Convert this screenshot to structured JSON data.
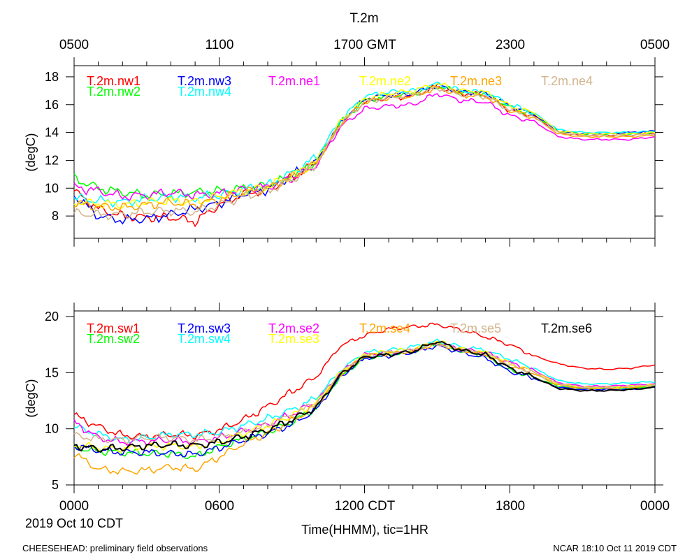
{
  "figure_title": "T.2m",
  "top_axis_labels": [
    "0500",
    "1100",
    "1700 GMT",
    "2300",
    "0500"
  ],
  "bottom_axis_labels": [
    "0000",
    "0600",
    "1200 CDT",
    "1800",
    "0000"
  ],
  "date_label": "2019 Oct 10 CDT",
  "x_axis_title": "Time(HHMM), tic=1HR",
  "footer_left": "CHEESEHEAD: preliminary field observations",
  "footer_right": "NCAR 18:10 Oct 11 2019 CDT",
  "chart_data": [
    {
      "type": "line",
      "panel": "north",
      "ylabel": "(degC)",
      "ylim": [
        6.4,
        18.8
      ],
      "yticks": [
        8,
        10,
        12,
        14,
        16,
        18
      ],
      "xlim": [
        0,
        24
      ],
      "x": [
        0,
        1,
        2,
        3,
        4,
        5,
        6,
        7,
        8,
        9,
        10,
        11,
        12,
        13,
        14,
        15,
        16,
        17,
        18,
        19,
        20,
        21,
        22,
        23,
        24
      ],
      "series": [
        {
          "name": "T.2m.nw1",
          "color": "#ff0000",
          "values": [
            9.8,
            8.5,
            8.0,
            7.9,
            7.9,
            7.6,
            8.8,
            9.6,
            9.9,
            10.8,
            11.8,
            14.5,
            16.2,
            16.5,
            16.6,
            17.3,
            16.8,
            16.7,
            15.6,
            15.2,
            14.0,
            13.8,
            13.8,
            13.8,
            14.0
          ]
        },
        {
          "name": "T.2m.nw2",
          "color": "#00ff00",
          "values": [
            10.7,
            10.0,
            9.7,
            9.5,
            9.6,
            9.7,
            9.8,
            10.0,
            10.2,
            10.8,
            11.9,
            14.7,
            16.3,
            16.6,
            16.8,
            17.3,
            16.9,
            16.8,
            15.8,
            15.3,
            14.1,
            13.9,
            13.9,
            13.9,
            14.0
          ]
        },
        {
          "name": "T.2m.nw3",
          "color": "#0000ff",
          "values": [
            9.5,
            8.0,
            7.7,
            7.8,
            8.1,
            8.5,
            8.9,
            9.6,
            9.9,
            10.9,
            11.9,
            14.7,
            16.4,
            16.7,
            16.8,
            17.4,
            16.9,
            16.8,
            15.9,
            15.3,
            14.1,
            13.9,
            13.9,
            14.0,
            14.1
          ]
        },
        {
          "name": "T.2m.nw4",
          "color": "#00ffff",
          "values": [
            9.3,
            9.1,
            9.0,
            9.2,
            9.4,
            9.3,
            9.5,
            9.9,
            10.2,
            11.1,
            12.2,
            14.9,
            16.6,
            16.9,
            17.0,
            17.5,
            17.0,
            16.9,
            16.0,
            15.4,
            14.2,
            14.0,
            14.0,
            14.0,
            14.1
          ]
        },
        {
          "name": "T.2m.ne1",
          "color": "#ff00ff",
          "values": [
            10.1,
            9.8,
            9.4,
            9.5,
            9.7,
            9.5,
            9.6,
            9.9,
            10.1,
            10.7,
            11.6,
            14.4,
            15.7,
            15.9,
            16.0,
            16.8,
            16.3,
            16.2,
            15.2,
            14.8,
            13.7,
            13.5,
            13.5,
            13.5,
            13.7
          ]
        },
        {
          "name": "T.2m.ne2",
          "color": "#ffff00",
          "values": [
            9.0,
            8.9,
            8.8,
            9.0,
            9.1,
            9.0,
            9.4,
            9.8,
            10.1,
            10.9,
            11.9,
            14.8,
            16.4,
            16.8,
            17.0,
            17.5,
            17.0,
            16.9,
            15.9,
            15.4,
            14.1,
            13.9,
            13.9,
            13.9,
            14.0
          ]
        },
        {
          "name": "T.2m.ne3",
          "color": "#ffa500",
          "values": [
            8.9,
            8.7,
            8.6,
            8.8,
            9.0,
            8.8,
            9.2,
            9.7,
            10.0,
            10.8,
            11.8,
            14.6,
            16.2,
            16.5,
            16.6,
            17.2,
            16.7,
            16.6,
            15.6,
            15.1,
            13.9,
            13.7,
            13.7,
            13.7,
            13.8
          ]
        },
        {
          "name": "T.2m.ne4",
          "color": "#d2b48c",
          "values": [
            8.2,
            8.1,
            8.1,
            8.3,
            8.4,
            8.3,
            8.8,
            9.4,
            9.8,
            10.6,
            11.7,
            14.6,
            16.2,
            16.5,
            16.7,
            17.2,
            16.7,
            16.6,
            15.6,
            15.1,
            14.0,
            13.8,
            13.8,
            13.8,
            13.9
          ]
        }
      ]
    },
    {
      "type": "line",
      "panel": "south",
      "ylabel": "(degC)",
      "ylim": [
        5,
        20.5
      ],
      "yticks": [
        5,
        10,
        15,
        20
      ],
      "xlim": [
        0,
        24
      ],
      "x": [
        0,
        1,
        2,
        3,
        4,
        5,
        6,
        7,
        8,
        9,
        10,
        11,
        12,
        13,
        14,
        15,
        16,
        17,
        18,
        19,
        20,
        21,
        22,
        23,
        24
      ],
      "series": [
        {
          "name": "T.2m.sw1",
          "color": "#ff0000",
          "values": [
            11.2,
            10.2,
            9.4,
            9.3,
            9.5,
            9.4,
            9.9,
            10.8,
            12.0,
            13.3,
            14.6,
            17.4,
            18.3,
            18.9,
            19.1,
            19.3,
            18.8,
            18.2,
            17.5,
            16.5,
            15.8,
            15.4,
            15.3,
            15.4,
            15.7
          ]
        },
        {
          "name": "T.2m.sw2",
          "color": "#00ff00",
          "values": [
            8.3,
            8.0,
            7.9,
            7.8,
            7.8,
            7.5,
            8.4,
            9.1,
            9.7,
            10.6,
            11.8,
            14.6,
            16.3,
            16.6,
            16.9,
            17.6,
            16.9,
            16.5,
            15.2,
            14.6,
            13.8,
            13.6,
            13.6,
            13.6,
            13.8
          ]
        },
        {
          "name": "T.2m.sw3",
          "color": "#0000ff",
          "values": [
            8.5,
            8.1,
            7.9,
            7.9,
            7.8,
            7.7,
            8.3,
            9.0,
            9.6,
            10.4,
            11.7,
            14.6,
            16.3,
            16.5,
            16.8,
            17.4,
            16.8,
            16.3,
            15.1,
            14.5,
            13.7,
            13.5,
            13.5,
            13.5,
            13.7
          ]
        },
        {
          "name": "T.2m.sw4",
          "color": "#00ffff",
          "values": [
            10.2,
            9.5,
            9.0,
            9.2,
            9.5,
            9.5,
            9.7,
            10.3,
            10.9,
            11.7,
            12.7,
            15.2,
            16.8,
            17.0,
            17.3,
            17.8,
            17.3,
            17.0,
            16.2,
            15.4,
            14.3,
            14.0,
            14.0,
            14.1,
            14.2
          ]
        },
        {
          "name": "T.2m.se2",
          "color": "#ff00ff",
          "values": [
            10.6,
            9.2,
            8.8,
            8.9,
            9.0,
            8.8,
            9.2,
            9.8,
            10.4,
            11.3,
            12.4,
            15.0,
            16.6,
            16.8,
            17.0,
            17.6,
            17.1,
            16.8,
            15.9,
            15.2,
            14.1,
            13.8,
            13.8,
            13.9,
            14.0
          ]
        },
        {
          "name": "T.2m.se3",
          "color": "#ffff00",
          "values": [
            8.6,
            8.3,
            8.2,
            8.4,
            8.5,
            8.4,
            8.8,
            9.6,
            10.3,
            11.2,
            12.3,
            15.0,
            16.6,
            16.9,
            17.1,
            17.8,
            17.1,
            16.8,
            15.8,
            15.1,
            14.0,
            13.7,
            13.7,
            13.8,
            13.9
          ]
        },
        {
          "name": "T.2m.se4",
          "color": "#ffa500",
          "values": [
            7.8,
            6.4,
            6.2,
            6.3,
            6.6,
            6.4,
            7.5,
            8.7,
            9.6,
            10.7,
            12.0,
            14.8,
            16.5,
            16.7,
            16.9,
            17.6,
            17.0,
            16.6,
            15.6,
            14.9,
            13.9,
            13.6,
            13.6,
            13.7,
            13.8
          ]
        },
        {
          "name": "T.2m.se5",
          "color": "#d2b48c",
          "values": [
            9.4,
            9.1,
            9.0,
            9.2,
            9.2,
            9.0,
            9.2,
            9.7,
            10.3,
            11.2,
            12.3,
            15.0,
            16.5,
            16.8,
            17.0,
            17.6,
            17.0,
            16.7,
            15.7,
            15.0,
            14.0,
            13.7,
            13.7,
            13.8,
            13.9
          ]
        },
        {
          "name": "T.2m.se6",
          "color": "#000000",
          "values": [
            8.5,
            8.2,
            8.3,
            8.5,
            8.6,
            8.5,
            8.8,
            9.3,
            9.9,
            10.8,
            11.9,
            14.8,
            16.4,
            16.6,
            16.9,
            17.8,
            17.0,
            16.6,
            15.4,
            14.6,
            13.6,
            13.4,
            13.4,
            13.5,
            13.7
          ]
        }
      ]
    }
  ]
}
